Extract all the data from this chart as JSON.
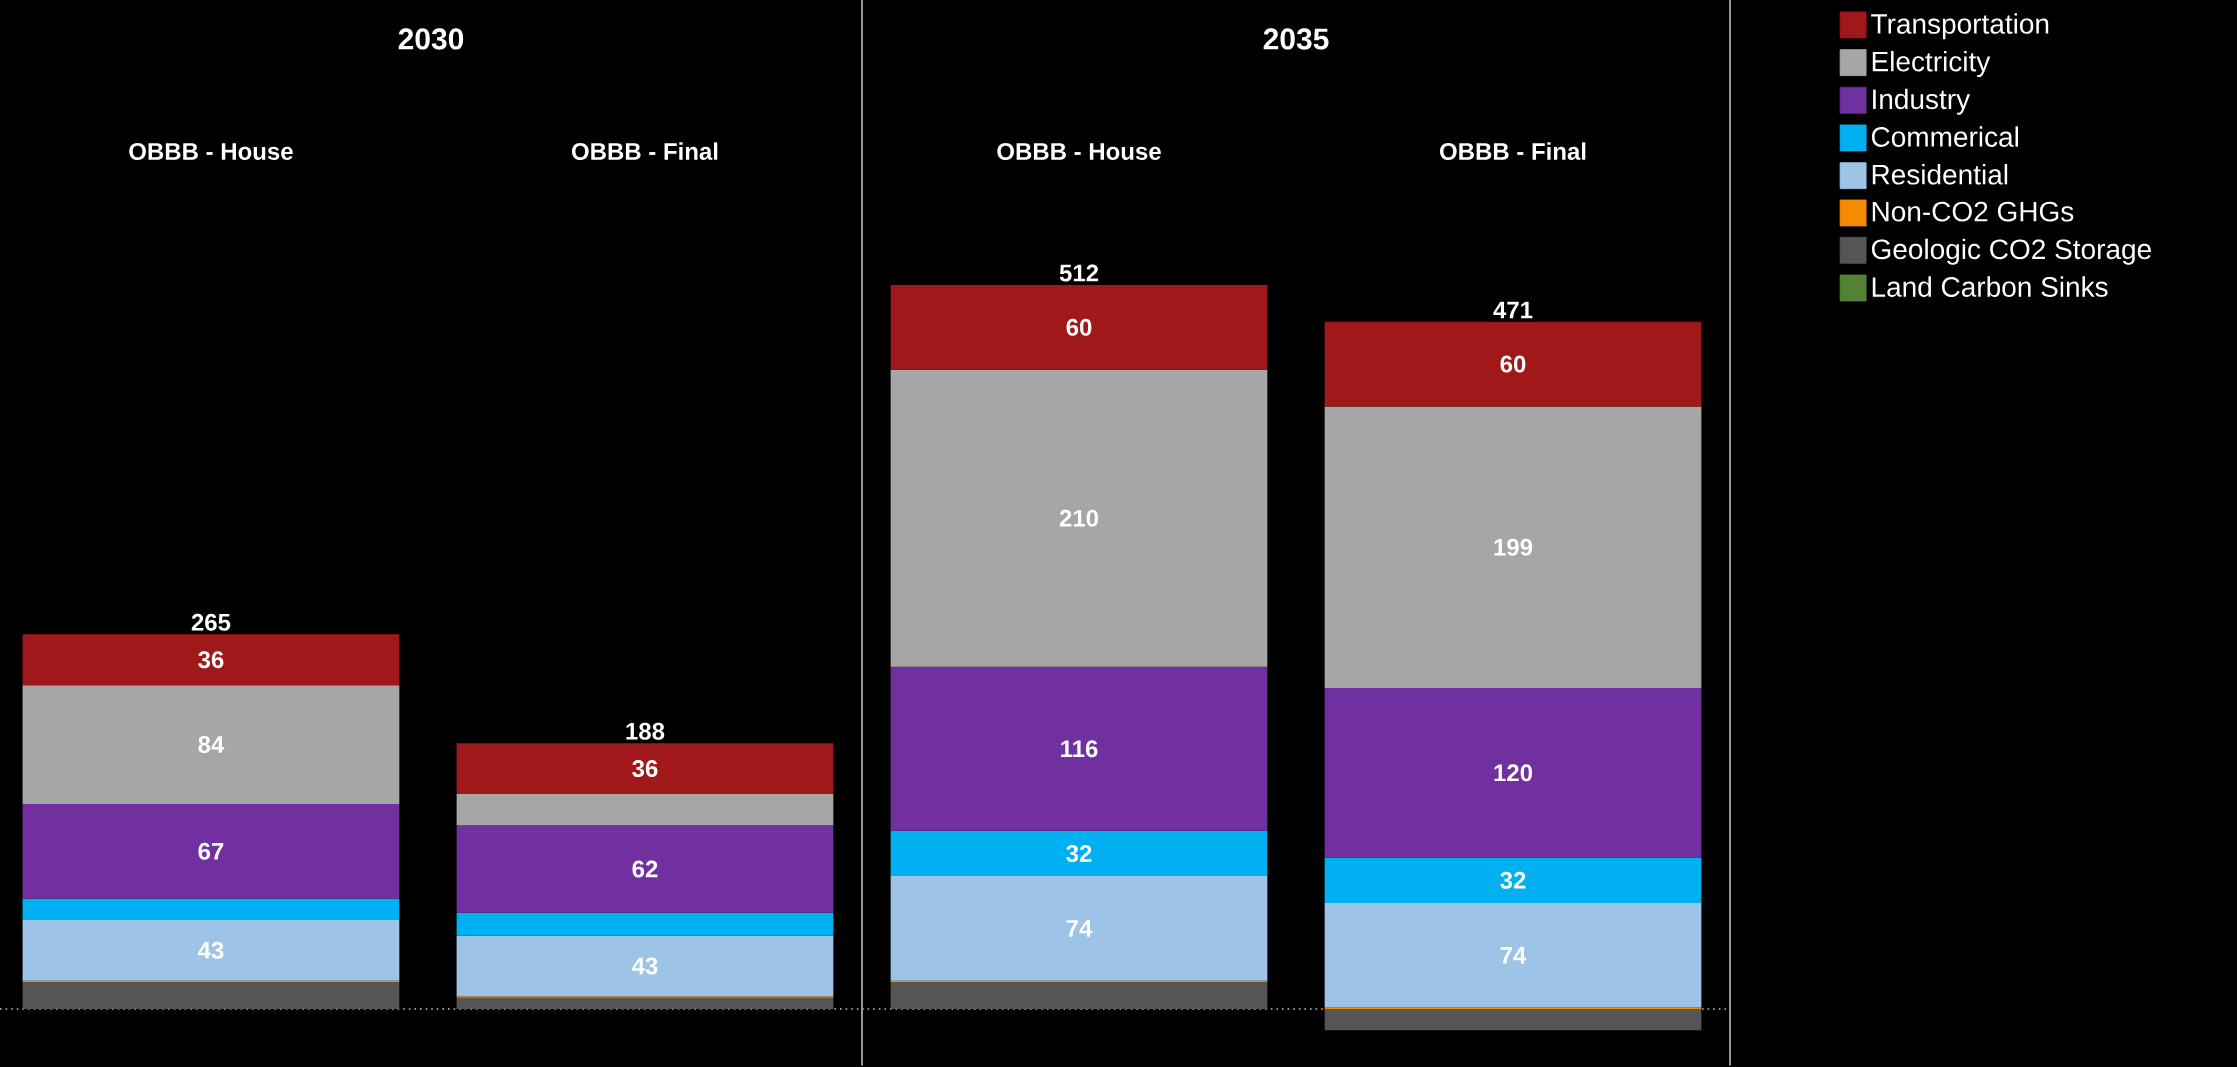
{
  "chart_data": [
    {
      "type": "bar",
      "title": "2030",
      "stacked": true,
      "categories": [
        "OBBB - House",
        "OBBB - Final"
      ],
      "series": [
        {
          "color": "#548235",
          "values": [
            null,
            null
          ]
        },
        {
          "color": "#555555",
          "values": [
            19,
            8
          ]
        },
        {
          "color": "#f58b00",
          "values": [
            1,
            1
          ]
        },
        {
          "color": "#9dc3e6",
          "values": [
            43,
            43
          ],
          "value_labels": [
            "43",
            "43"
          ]
        },
        {
          "color": "#00b0f0",
          "values": [
            15,
            16
          ]
        },
        {
          "color": "#7030a0",
          "values": [
            67,
            62
          ],
          "value_labels": [
            "67",
            "62"
          ]
        },
        {
          "color": "#a6a6a6",
          "values": [
            84,
            22
          ],
          "value_labels": [
            "84",
            null
          ]
        },
        {
          "color": "#a0181a",
          "values": [
            36,
            36
          ],
          "value_labels": [
            "36",
            "36"
          ]
        }
      ],
      "totals": [
        "265",
        "188"
      ],
      "ref_lines": [
        {
          "axis": "y",
          "value": 0,
          "color": "#bfbfbf",
          "line_style": "dotted"
        }
      ]
    },
    {
      "type": "bar",
      "title": "2035",
      "stacked": true,
      "categories": [
        "OBBB - House",
        "OBBB - Final"
      ],
      "legend": "top right",
      "series": [
        {
          "name": "Land Carbon Sinks",
          "color": "#548235",
          "values": [
            null,
            null
          ]
        },
        {
          "name": "Geologic CO2 Storage",
          "color": "#555555",
          "values": [
            19,
            -15
          ]
        },
        {
          "name": "Non-CO2 GHGs",
          "color": "#f58b00",
          "values": [
            1,
            1
          ]
        },
        {
          "name": "Residential",
          "color": "#9dc3e6",
          "values": [
            74,
            74
          ],
          "value_labels": [
            "74",
            "74"
          ]
        },
        {
          "name": "Commerical",
          "color": "#00b0f0",
          "values": [
            32,
            32
          ],
          "value_labels": [
            "32",
            "32"
          ]
        },
        {
          "name": "Industry",
          "color": "#7030a0",
          "values": [
            116,
            120
          ],
          "value_labels": [
            "116",
            "120"
          ]
        },
        {
          "name": "Electricity",
          "color": "#a6a6a6",
          "values": [
            210,
            199
          ],
          "value_labels": [
            "210",
            "199"
          ]
        },
        {
          "name": "Transportation",
          "color": "#a0181a",
          "values": [
            60,
            60
          ],
          "value_labels": [
            "60",
            "60"
          ]
        }
      ],
      "totals": [
        "512",
        "471"
      ],
      "ref_lines": [
        {
          "axis": "y",
          "value": 0,
          "color": "#bfbfbf",
          "line_style": "dotted"
        }
      ]
    }
  ]
}
